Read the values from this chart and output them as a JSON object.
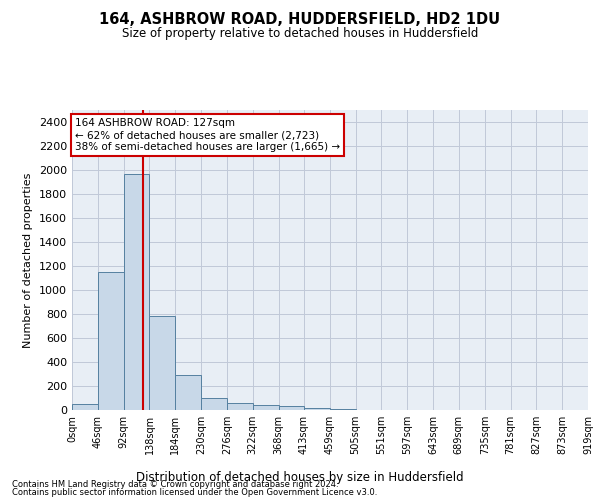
{
  "title": "164, ASHBROW ROAD, HUDDERSFIELD, HD2 1DU",
  "subtitle": "Size of property relative to detached houses in Huddersfield",
  "xlabel": "Distribution of detached houses by size in Huddersfield",
  "ylabel": "Number of detached properties",
  "footnote1": "Contains HM Land Registry data © Crown copyright and database right 2024.",
  "footnote2": "Contains public sector information licensed under the Open Government Licence v3.0.",
  "property_size": 127,
  "annotation_title": "164 ASHBROW ROAD: 127sqm",
  "annotation_line1": "← 62% of detached houses are smaller (2,723)",
  "annotation_line2": "38% of semi-detached houses are larger (1,665) →",
  "bar_edges": [
    0,
    46,
    92,
    138,
    184,
    230,
    276,
    322,
    368,
    413,
    459,
    505,
    551,
    597,
    643,
    689,
    735,
    781,
    827,
    873,
    919
  ],
  "bar_heights": [
    50,
    1150,
    1970,
    780,
    290,
    100,
    55,
    40,
    30,
    15,
    5,
    0,
    0,
    0,
    0,
    0,
    0,
    0,
    0,
    0
  ],
  "bar_color": "#c8d8e8",
  "bar_edge_color": "#5580a0",
  "redline_color": "#cc0000",
  "annotation_box_color": "#cc0000",
  "grid_color": "#c0c8d8",
  "background_color": "#e8eef5",
  "ylim": [
    0,
    2500
  ],
  "yticks": [
    0,
    200,
    400,
    600,
    800,
    1000,
    1200,
    1400,
    1600,
    1800,
    2000,
    2200,
    2400
  ],
  "xtick_labels": [
    "0sqm",
    "46sqm",
    "92sqm",
    "138sqm",
    "184sqm",
    "230sqm",
    "276sqm",
    "322sqm",
    "368sqm",
    "413sqm",
    "459sqm",
    "505sqm",
    "551sqm",
    "597sqm",
    "643sqm",
    "689sqm",
    "735sqm",
    "781sqm",
    "827sqm",
    "873sqm",
    "919sqm"
  ]
}
